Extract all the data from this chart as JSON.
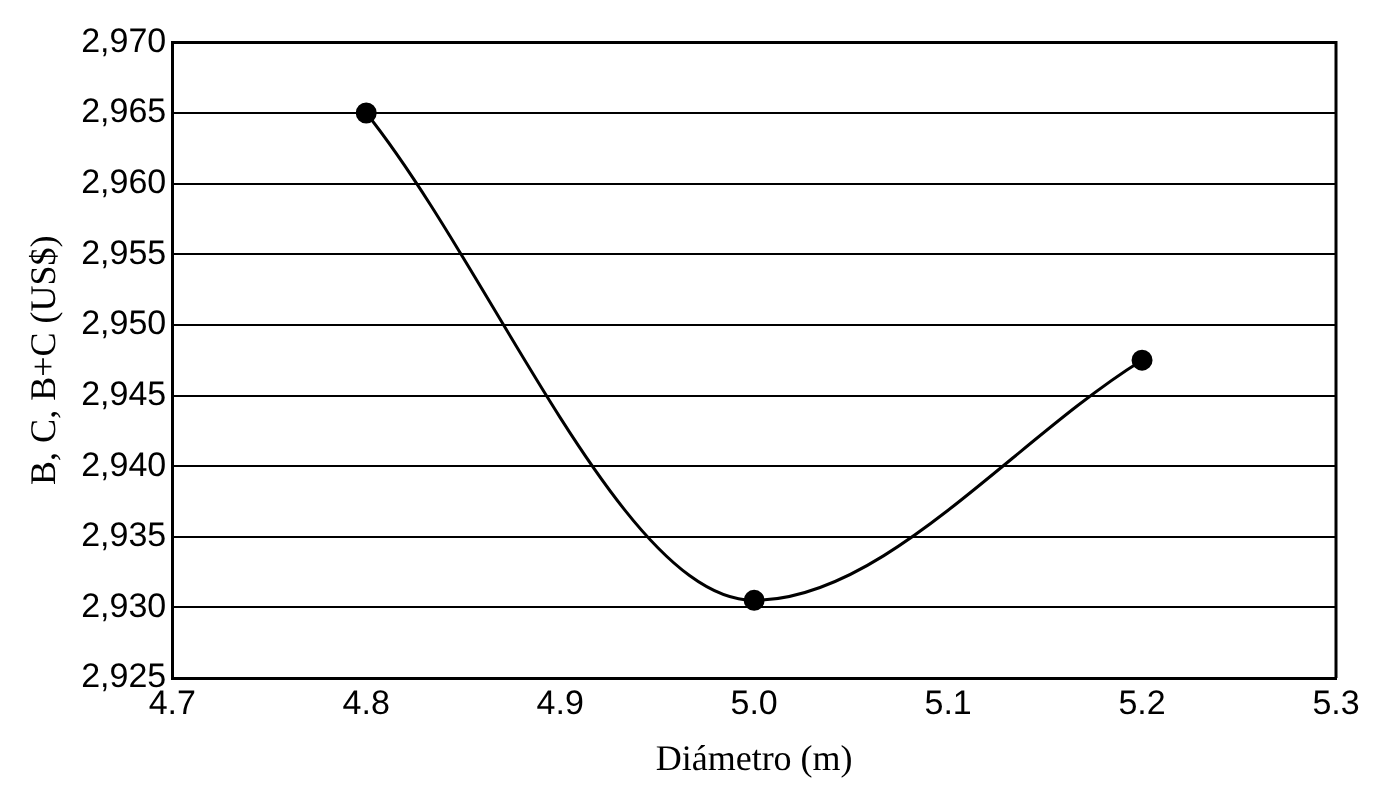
{
  "chart_data": {
    "type": "line",
    "xlabel": "Diámetro (m)",
    "ylabel": "B, C, B+C (US$)",
    "x": [
      4.8,
      5.0,
      5.2
    ],
    "series": [
      {
        "color": "#000000",
        "values": [
          2965,
          2930.5,
          2947.5
        ]
      }
    ],
    "xlim": [
      4.7,
      5.3
    ],
    "xticks": [
      4.7,
      4.8,
      4.9,
      {
        "value": 5,
        "label": "5.0"
      },
      5.1,
      5.2,
      5.3
    ],
    "ylim": [
      2925,
      2970
    ],
    "yticks": [
      {
        "value": 2925,
        "label": "2,925"
      },
      {
        "value": 2930,
        "label": "2,930"
      },
      {
        "value": 2935,
        "label": "2,935"
      },
      {
        "value": 2940,
        "label": "2,940"
      },
      {
        "value": 2945,
        "label": "2,945"
      },
      {
        "value": 2950,
        "label": "2,950"
      },
      {
        "value": 2955,
        "label": "2,955"
      },
      {
        "value": 2960,
        "label": "2,960"
      },
      {
        "value": 2965,
        "label": "2,965"
      },
      {
        "value": 2970,
        "label": "2,970"
      }
    ],
    "grid": "y",
    "legend": false,
    "marker": "circle",
    "line_style": "solid"
  }
}
